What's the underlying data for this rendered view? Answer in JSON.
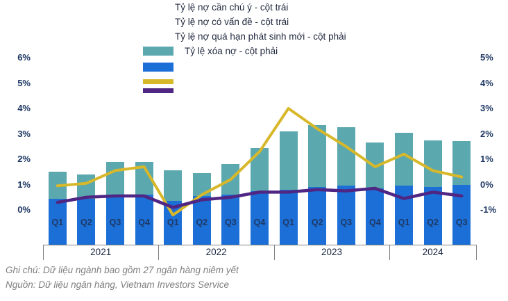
{
  "legend": {
    "items": [
      "Tỷ lệ nợ cần chú ý - cột trái",
      "Tỷ lệ nợ có vấn đề - cột trái",
      "Tỷ lệ nợ quá hạn phát sinh mới - cột phải",
      "Tỷ lệ xóa nợ - cột phải"
    ]
  },
  "footnotes": {
    "note": "Ghi chú: Dữ liệu ngành bao gồm 27 ngân hàng niêm yết",
    "source": "Nguồn: Dữ liệu ngân hàng, Vietnam Investors Service"
  },
  "colors": {
    "bar_teal": "#5BA8AE",
    "bar_blue": "#1B6FD6",
    "line_yellow": "#D8B82B",
    "line_purple": "#4F2683",
    "axis_label": "#1F3864",
    "footnote_gray": "#7F7F7F"
  },
  "chart_data": {
    "type": "combo bar + line, dual axis",
    "categories": [
      "Q1",
      "Q2",
      "Q3",
      "Q4",
      "Q1",
      "Q2",
      "Q3",
      "Q4",
      "Q1",
      "Q2",
      "Q3",
      "Q4",
      "Q1",
      "Q2",
      "Q3"
    ],
    "year_groups": [
      {
        "label": "2021",
        "quarters": 4
      },
      {
        "label": "2022",
        "quarters": 4
      },
      {
        "label": "2023",
        "quarters": 4
      },
      {
        "label": "2024",
        "quarters": 3
      }
    ],
    "series": [
      {
        "name": "Tỷ lệ nợ cần chú ý - cột trái",
        "type": "bar",
        "axis": "left",
        "color": "#5BA8AE",
        "values": [
          1.5,
          1.4,
          1.9,
          1.9,
          1.55,
          1.45,
          1.8,
          2.45,
          3.1,
          3.35,
          3.25,
          2.65,
          3.05,
          2.75,
          2.7
        ]
      },
      {
        "name": "Tỷ lệ nợ có vấn đề - cột trái",
        "type": "bar",
        "axis": "left",
        "color": "#1B6FD6",
        "values": [
          0.45,
          0.45,
          0.6,
          0.6,
          0.35,
          0.55,
          0.6,
          0.75,
          0.8,
          0.9,
          0.95,
          0.85,
          0.95,
          0.9,
          1.0
        ]
      },
      {
        "name": "Tỷ lệ nợ quá hạn phát sinh mới - cột phải",
        "type": "line",
        "axis": "right",
        "color": "#D8B82B",
        "values": [
          -0.05,
          0.05,
          0.55,
          0.7,
          -1.2,
          -0.4,
          0.2,
          1.3,
          3.0,
          2.2,
          1.5,
          0.7,
          1.2,
          0.55,
          0.3
        ]
      },
      {
        "name": "Tỷ lệ xóa nợ - cột phải",
        "type": "line",
        "axis": "right",
        "color": "#4F2683",
        "values": [
          -0.7,
          -0.5,
          -0.45,
          -0.45,
          -0.9,
          -0.6,
          -0.5,
          -0.3,
          -0.3,
          -0.2,
          -0.25,
          -0.15,
          -0.55,
          -0.3,
          -0.45
        ]
      }
    ],
    "left_axis": {
      "tick_labels": [
        "6%",
        "5%",
        "4%",
        "3%",
        "2%",
        "1%",
        "0%"
      ],
      "min": 0,
      "max": 6,
      "unit": "%"
    },
    "right_axis": {
      "tick_labels": [
        "5%",
        "4%",
        "3%",
        "2%",
        "1%",
        "0%",
        "-1%"
      ],
      "min": -1,
      "max": 5,
      "unit": "%"
    },
    "grid": false,
    "legend_position": "top-center",
    "title": "",
    "xlabel": "",
    "ylabel": ""
  }
}
